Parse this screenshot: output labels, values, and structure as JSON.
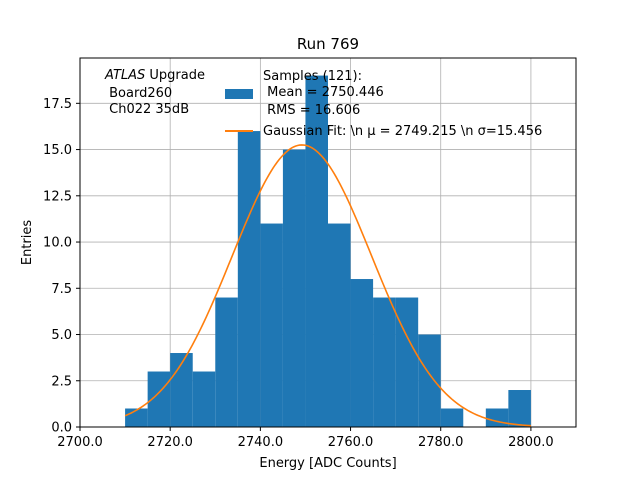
{
  "chart_data": {
    "type": "histogram",
    "title": "Run 769",
    "xlabel": "Energy [ADC Counts]",
    "ylabel": "Entries",
    "xlim": [
      2700,
      2810
    ],
    "ylim": [
      0,
      19.95
    ],
    "xticks": [
      2700,
      2720,
      2740,
      2760,
      2780,
      2800
    ],
    "xtick_labels": [
      "2700.0",
      "2720.0",
      "2740.0",
      "2760.0",
      "2780.0",
      "2800.0"
    ],
    "yticks": [
      0,
      2.5,
      5,
      7.5,
      10,
      12.5,
      15,
      17.5
    ],
    "ytick_labels": [
      "0.0",
      "2.5",
      "5.0",
      "7.5",
      "10.0",
      "12.5",
      "15.0",
      "17.5"
    ],
    "grid": true,
    "bin_width": 5,
    "bin_edges_start": 2710,
    "counts": [
      1,
      3,
      4,
      3,
      7,
      16,
      11,
      15,
      19,
      11,
      8,
      7,
      7,
      5,
      1,
      0,
      1,
      2
    ],
    "bar_color": "#1f77b4",
    "fit": {
      "mu": 2749.215,
      "sigma": 15.456,
      "amplitude": 15.25,
      "x_range": [
        2710,
        2800
      ],
      "color": "#ff7f0e"
    },
    "legend": {
      "placement": "top-center",
      "samples_lines": [
        "Samples (121):",
        " Mean = 2750.446",
        " RMS = 16.606"
      ],
      "fit_label": "Gaussian Fit: \\n μ = 2749.215 \\n σ=15.456"
    },
    "annotation": {
      "atlas_italic": "ATLAS",
      "atlas_rest": " Upgrade",
      "lines": [
        " Board260",
        " Ch022 35dB"
      ]
    }
  }
}
